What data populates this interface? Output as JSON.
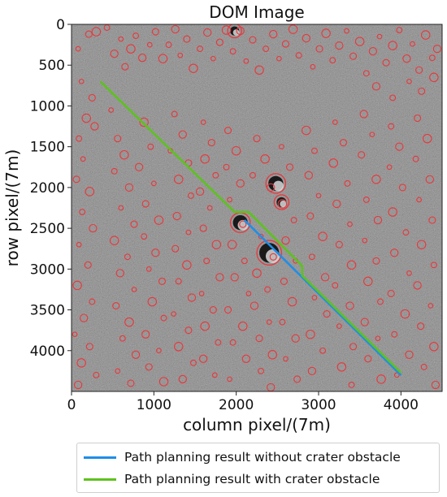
{
  "chart_data": {
    "type": "line",
    "title": "DOM Image",
    "xlabel": "column pixel/(7m)",
    "ylabel": "row pixel/(7m)",
    "xlim": [
      0,
      4500
    ],
    "ylim": [
      4500,
      0
    ],
    "x_ticks": [
      0,
      1000,
      2000,
      3000,
      4000
    ],
    "y_ticks": [
      0,
      500,
      1000,
      1500,
      2000,
      2500,
      3000,
      3500,
      4000
    ],
    "background": "grayscale lunar surface DOM image with crater detections",
    "grid": false,
    "legend_position": "below",
    "series": [
      {
        "name": "Path planning result without crater obstacle",
        "color": "#1f8ee8",
        "x": [
          2100,
          4000
        ],
        "y": [
          2400,
          4300
        ]
      },
      {
        "name": "Path planning result with crater obstacle",
        "color": "#5dc21e",
        "x": [
          350,
          1980,
          2150,
          2230,
          2800,
          2800,
          4000
        ],
        "y": [
          700,
          2300,
          2300,
          2380,
          2960,
          3080,
          4270
        ]
      }
    ],
    "crater_color": "#e8373c",
    "craters": [
      [
        80,
        300
      ],
      [
        210,
        120
      ],
      [
        300,
        90
      ],
      [
        430,
        40
      ],
      [
        520,
        360
      ],
      [
        600,
        180
      ],
      [
        650,
        520
      ],
      [
        720,
        300
      ],
      [
        780,
        140
      ],
      [
        860,
        410
      ],
      [
        950,
        250
      ],
      [
        1020,
        90
      ],
      [
        1110,
        420
      ],
      [
        1180,
        250
      ],
      [
        1260,
        60
      ],
      [
        1320,
        380
      ],
      [
        1400,
        180
      ],
      [
        1480,
        540
      ],
      [
        1560,
        300
      ],
      [
        1650,
        100
      ],
      [
        1720,
        420
      ],
      [
        1800,
        220
      ],
      [
        1880,
        70
      ],
      [
        1960,
        330
      ],
      [
        2050,
        80
      ],
      [
        2120,
        450
      ],
      [
        2200,
        190
      ],
      [
        2280,
        560
      ],
      [
        2360,
        300
      ],
      [
        2450,
        120
      ],
      [
        2520,
        420
      ],
      [
        2600,
        240
      ],
      [
        2690,
        60
      ],
      [
        2760,
        380
      ],
      [
        2850,
        170
      ],
      [
        2930,
        520
      ],
      [
        3010,
        300
      ],
      [
        3090,
        110
      ],
      [
        3170,
        440
      ],
      [
        3250,
        260
      ],
      [
        3340,
        80
      ],
      [
        3420,
        390
      ],
      [
        3500,
        210
      ],
      [
        3580,
        600
      ],
      [
        3660,
        330
      ],
      [
        3740,
        150
      ],
      [
        3820,
        470
      ],
      [
        3900,
        260
      ],
      [
        3980,
        70
      ],
      [
        4070,
        420
      ],
      [
        4140,
        240
      ],
      [
        4220,
        560
      ],
      [
        4300,
        130
      ],
      [
        4380,
        410
      ],
      [
        4440,
        300
      ],
      [
        4100,
        700
      ],
      [
        4250,
        820
      ],
      [
        4400,
        650
      ],
      [
        3900,
        900
      ],
      [
        3700,
        760
      ],
      [
        120,
        700
      ],
      [
        250,
        900
      ],
      [
        180,
        1150
      ],
      [
        90,
        1400
      ],
      [
        280,
        1250
      ],
      [
        140,
        1650
      ],
      [
        60,
        1900
      ],
      [
        220,
        2050
      ],
      [
        130,
        2300
      ],
      [
        260,
        2500
      ],
      [
        90,
        2700
      ],
      [
        200,
        2950
      ],
      [
        70,
        3200
      ],
      [
        250,
        3400
      ],
      [
        150,
        3600
      ],
      [
        40,
        3800
      ],
      [
        220,
        3950
      ],
      [
        120,
        4150
      ],
      [
        300,
        4300
      ],
      [
        80,
        4420
      ],
      [
        480,
        1050
      ],
      [
        560,
        1400
      ],
      [
        640,
        1600
      ],
      [
        520,
        1800
      ],
      [
        700,
        2000
      ],
      [
        600,
        2250
      ],
      [
        760,
        2450
      ],
      [
        520,
        2650
      ],
      [
        680,
        2850
      ],
      [
        590,
        3050
      ],
      [
        760,
        3250
      ],
      [
        540,
        3450
      ],
      [
        700,
        3650
      ],
      [
        620,
        3850
      ],
      [
        780,
        4050
      ],
      [
        560,
        4250
      ],
      [
        720,
        4400
      ],
      [
        880,
        1200
      ],
      [
        960,
        1500
      ],
      [
        820,
        1750
      ],
      [
        1000,
        1950
      ],
      [
        900,
        2200
      ],
      [
        1060,
        2400
      ],
      [
        880,
        2600
      ],
      [
        1020,
        2800
      ],
      [
        940,
        3000
      ],
      [
        1100,
        3150
      ],
      [
        980,
        3400
      ],
      [
        1120,
        3600
      ],
      [
        900,
        3800
      ],
      [
        1060,
        4000
      ],
      [
        940,
        4200
      ],
      [
        1120,
        4380
      ],
      [
        1250,
        1100
      ],
      [
        1350,
        1350
      ],
      [
        1200,
        1550
      ],
      [
        1420,
        1700
      ],
      [
        1300,
        1900
      ],
      [
        1450,
        2100
      ],
      [
        1280,
        2350
      ],
      [
        1420,
        2550
      ],
      [
        1260,
        2750
      ],
      [
        1400,
        2950
      ],
      [
        1300,
        3150
      ],
      [
        1460,
        3350
      ],
      [
        1240,
        3550
      ],
      [
        1420,
        3750
      ],
      [
        1300,
        3950
      ],
      [
        1480,
        4150
      ],
      [
        1350,
        4350
      ],
      [
        1600,
        1200
      ],
      [
        1700,
        1450
      ],
      [
        1620,
        1650
      ],
      [
        1750,
        1850
      ],
      [
        1560,
        2050
      ],
      [
        1680,
        2250
      ],
      [
        1600,
        2500
      ],
      [
        1760,
        2700
      ],
      [
        1640,
        2900
      ],
      [
        1800,
        3100
      ],
      [
        1580,
        3300
      ],
      [
        1720,
        3500
      ],
      [
        1620,
        3700
      ],
      [
        1780,
        3900
      ],
      [
        1600,
        4100
      ],
      [
        1740,
        4300
      ],
      [
        1900,
        1300
      ],
      [
        2000,
        1550
      ],
      [
        1880,
        1750
      ],
      [
        2050,
        1950
      ],
      [
        1920,
        2150
      ],
      [
        2080,
        2450
      ],
      [
        1950,
        2700
      ],
      [
        2100,
        2900
      ],
      [
        1980,
        3100
      ],
      [
        2150,
        3300
      ],
      [
        1900,
        3500
      ],
      [
        2080,
        3700
      ],
      [
        1960,
        3900
      ],
      [
        2120,
        4100
      ],
      [
        1920,
        4350
      ],
      [
        2250,
        1400
      ],
      [
        2350,
        1650
      ],
      [
        2200,
        1850
      ],
      [
        2420,
        2000
      ],
      [
        2300,
        2600
      ],
      [
        2450,
        2850
      ],
      [
        2250,
        3050
      ],
      [
        2380,
        3250
      ],
      [
        2220,
        3450
      ],
      [
        2400,
        3650
      ],
      [
        2280,
        3850
      ],
      [
        2440,
        4050
      ],
      [
        2300,
        4250
      ],
      [
        2420,
        4450
      ],
      [
        2550,
        1500
      ],
      [
        2650,
        1750
      ],
      [
        2560,
        2200
      ],
      [
        2700,
        2400
      ],
      [
        2600,
        2650
      ],
      [
        2720,
        2900
      ],
      [
        2580,
        3150
      ],
      [
        2680,
        3400
      ],
      [
        2560,
        3650
      ],
      [
        2720,
        3850
      ],
      [
        2600,
        4100
      ],
      [
        2740,
        4350
      ],
      [
        2850,
        1300
      ],
      [
        2950,
        1550
      ],
      [
        2880,
        1850
      ],
      [
        3000,
        2100
      ],
      [
        2900,
        2350
      ],
      [
        3050,
        2600
      ],
      [
        2920,
        2850
      ],
      [
        3080,
        3100
      ],
      [
        2950,
        3350
      ],
      [
        3100,
        3550
      ],
      [
        2900,
        3800
      ],
      [
        3050,
        4000
      ],
      [
        2920,
        4250
      ],
      [
        3200,
        1200
      ],
      [
        3300,
        1450
      ],
      [
        3180,
        1700
      ],
      [
        3350,
        1950
      ],
      [
        3220,
        2200
      ],
      [
        3380,
        2450
      ],
      [
        3250,
        2700
      ],
      [
        3400,
        2950
      ],
      [
        3200,
        3200
      ],
      [
        3380,
        3450
      ],
      [
        3250,
        3700
      ],
      [
        3420,
        3950
      ],
      [
        3280,
        4200
      ],
      [
        3400,
        4420
      ],
      [
        3550,
        1100
      ],
      [
        3650,
        1350
      ],
      [
        3520,
        1600
      ],
      [
        3700,
        1900
      ],
      [
        3580,
        2150
      ],
      [
        3720,
        2400
      ],
      [
        3560,
        2650
      ],
      [
        3700,
        2900
      ],
      [
        3600,
        3150
      ],
      [
        3750,
        3400
      ],
      [
        3560,
        3650
      ],
      [
        3720,
        3850
      ],
      [
        3600,
        4100
      ],
      [
        3760,
        4350
      ],
      [
        3880,
        1250
      ],
      [
        3980,
        1500
      ],
      [
        3860,
        1750
      ],
      [
        4020,
        2000
      ],
      [
        3900,
        2300
      ],
      [
        4060,
        2550
      ],
      [
        3920,
        2800
      ],
      [
        4100,
        3050
      ],
      [
        3880,
        3300
      ],
      [
        4050,
        3550
      ],
      [
        3920,
        3800
      ],
      [
        4100,
        4050
      ],
      [
        3950,
        4300
      ],
      [
        4200,
        1150
      ],
      [
        4320,
        1400
      ],
      [
        4180,
        1650
      ],
      [
        4350,
        1900
      ],
      [
        4220,
        2150
      ],
      [
        4380,
        2400
      ],
      [
        4250,
        2700
      ],
      [
        4400,
        2950
      ],
      [
        4200,
        3200
      ],
      [
        4360,
        3450
      ],
      [
        4240,
        3700
      ],
      [
        4400,
        3950
      ],
      [
        4280,
        4200
      ],
      [
        4420,
        4420
      ]
    ],
    "big_craters": [
      [
        2050,
        2430,
        90
      ],
      [
        2400,
        2800,
        120
      ],
      [
        2480,
        1950,
        90
      ],
      [
        2550,
        2180,
        60
      ],
      [
        1980,
        80,
        55
      ]
    ]
  }
}
